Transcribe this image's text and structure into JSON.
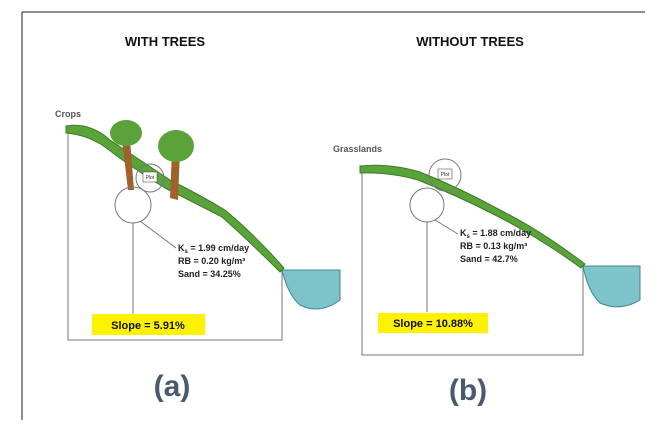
{
  "panels": [
    {
      "title": "WITH TREES",
      "land_label": "Crops",
      "ks": {
        "symbol": "K",
        "subscript": "s",
        "value": " = 1.99 cm/day"
      },
      "rb": "RB = 0.20 kg/m³",
      "sand": "Sand = 34.25%",
      "slope": "Slope = 5.91%",
      "plot": "Plot",
      "caption": "(a)"
    },
    {
      "title": "WITHOUT TREES",
      "land_label": "Grasslands",
      "ks": {
        "symbol": "K",
        "subscript": "s",
        "value": " = 1.88 cm/day"
      },
      "rb": "RB = 0.13 kg/m³",
      "sand": "Sand = 42.7%",
      "slope": "Slope = 10.88%",
      "plot": "Plot",
      "caption": "(b)"
    }
  ]
}
